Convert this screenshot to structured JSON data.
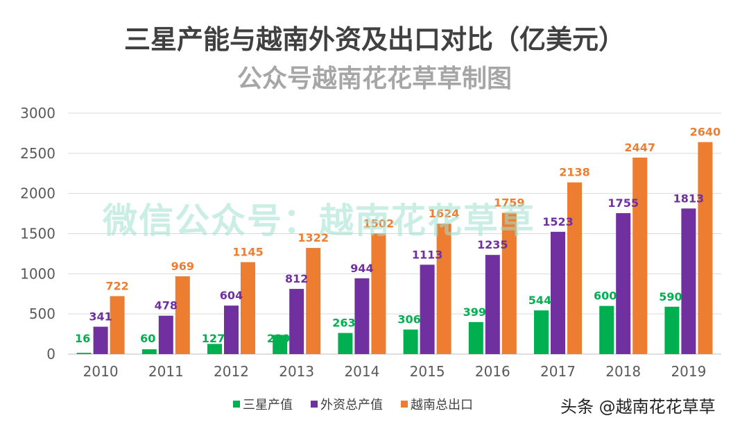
{
  "title": "三星产能与越南外资及出口对比（亿美元）",
  "subtitle": "公众号越南花花草草制图",
  "watermark": "微信公众号：越南花花草草",
  "footer": "头条 @越南花花草草",
  "chart_data": {
    "type": "bar",
    "categories": [
      "2010",
      "2011",
      "2012",
      "2013",
      "2014",
      "2015",
      "2016",
      "2017",
      "2018",
      "2019"
    ],
    "series": [
      {
        "name": "三星产值",
        "color": "#00b050",
        "values": [
          16,
          60,
          127,
          239,
          263,
          306,
          399,
          544,
          600,
          590
        ]
      },
      {
        "name": "外资总产值",
        "color": "#7030a0",
        "values": [
          341,
          478,
          604,
          812,
          944,
          1113,
          1235,
          1523,
          1755,
          1813
        ]
      },
      {
        "name": "越南总出口",
        "color": "#ed7d31",
        "values": [
          722,
          969,
          1145,
          1322,
          1502,
          1624,
          1759,
          2138,
          2447,
          2640
        ]
      }
    ],
    "yticks": [
      0,
      500,
      1000,
      1500,
      2000,
      2500,
      3000
    ],
    "ylim": [
      0,
      3000
    ],
    "grid": true,
    "legend_position": "bottom",
    "data_labels": true
  }
}
